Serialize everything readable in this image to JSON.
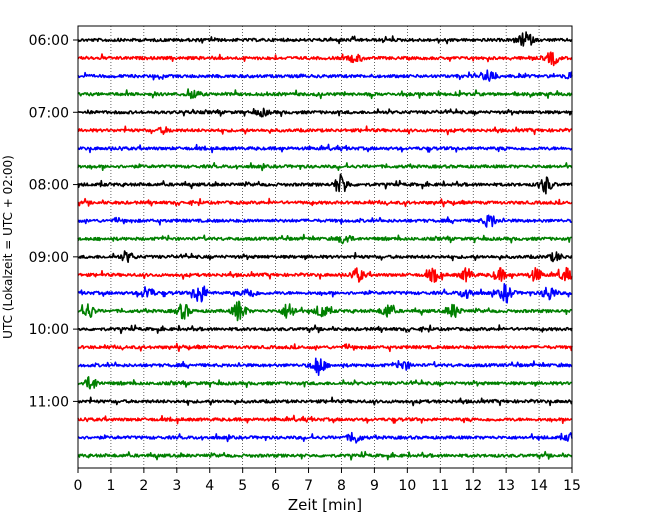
{
  "chart_data": {
    "type": "line",
    "title": "",
    "xlabel": "Zeit  [min]",
    "ylabel": "UTC (Lokalzeit = UTC + 02:00)",
    "xlim": [
      0,
      15
    ],
    "x_ticks": [
      0,
      1,
      2,
      3,
      4,
      5,
      6,
      7,
      8,
      9,
      10,
      11,
      12,
      13,
      14,
      15
    ],
    "y_tick_labels": [
      "06:00",
      "07:00",
      "08:00",
      "09:00",
      "10:00",
      "11:00"
    ],
    "grid": "vertical dotted lines at each minute",
    "trace_interval_minutes": 15,
    "trace_colors": [
      "#000000",
      "#ff0000",
      "#0000ff",
      "#008000"
    ],
    "rows": [
      {
        "start": "06:00",
        "color": "black",
        "bursts": [
          {
            "t": 13.6,
            "a": 1.0
          }
        ]
      },
      {
        "start": "06:15",
        "color": "red",
        "bursts": [
          {
            "t": 8.4,
            "a": 0.45
          },
          {
            "t": 14.4,
            "a": 0.8
          }
        ]
      },
      {
        "start": "06:30",
        "color": "blue",
        "bursts": [
          {
            "t": 12.5,
            "a": 0.8
          },
          {
            "t": 15.0,
            "a": 0.5
          }
        ]
      },
      {
        "start": "06:45",
        "color": "green",
        "bursts": [
          {
            "t": 3.5,
            "a": 0.5
          }
        ]
      },
      {
        "start": "07:00",
        "color": "black",
        "bursts": [
          {
            "t": 5.6,
            "a": 0.4
          }
        ]
      },
      {
        "start": "07:15",
        "color": "red",
        "bursts": [
          {
            "t": 2.6,
            "a": 0.3
          }
        ]
      },
      {
        "start": "07:30",
        "color": "blue",
        "bursts": []
      },
      {
        "start": "07:45",
        "color": "green",
        "bursts": []
      },
      {
        "start": "08:00",
        "color": "black",
        "bursts": [
          {
            "t": 8.0,
            "a": 1.2
          },
          {
            "t": 14.2,
            "a": 1.0
          }
        ]
      },
      {
        "start": "08:15",
        "color": "red",
        "bursts": []
      },
      {
        "start": "08:30",
        "color": "blue",
        "bursts": [
          {
            "t": 12.5,
            "a": 0.8
          }
        ]
      },
      {
        "start": "08:45",
        "color": "green",
        "bursts": [
          {
            "t": 8.1,
            "a": 0.6
          }
        ]
      },
      {
        "start": "09:00",
        "color": "black",
        "bursts": [
          {
            "t": 1.5,
            "a": 0.55
          },
          {
            "t": 14.5,
            "a": 0.5
          }
        ]
      },
      {
        "start": "09:15",
        "color": "red",
        "bursts": [
          {
            "t": 8.5,
            "a": 0.75
          },
          {
            "t": 10.8,
            "a": 0.75
          },
          {
            "t": 11.8,
            "a": 0.75
          },
          {
            "t": 12.8,
            "a": 0.75
          },
          {
            "t": 13.9,
            "a": 0.75
          },
          {
            "t": 14.8,
            "a": 0.75
          }
        ]
      },
      {
        "start": "09:30",
        "color": "blue",
        "bursts": [
          {
            "t": 2.1,
            "a": 0.8
          },
          {
            "t": 3.7,
            "a": 1.3
          },
          {
            "t": 5.2,
            "a": 0.6
          },
          {
            "t": 11.8,
            "a": 0.7
          },
          {
            "t": 13.0,
            "a": 1.1
          },
          {
            "t": 14.3,
            "a": 0.9
          }
        ]
      },
      {
        "start": "09:45",
        "color": "green",
        "bursts": [
          {
            "t": 0.3,
            "a": 0.9
          },
          {
            "t": 3.2,
            "a": 0.9
          },
          {
            "t": 4.9,
            "a": 1.3
          },
          {
            "t": 6.4,
            "a": 1.0
          },
          {
            "t": 7.4,
            "a": 0.8
          },
          {
            "t": 9.4,
            "a": 0.8
          },
          {
            "t": 11.4,
            "a": 0.8
          }
        ]
      },
      {
        "start": "10:00",
        "color": "black",
        "bursts": []
      },
      {
        "start": "10:15",
        "color": "red",
        "bursts": []
      },
      {
        "start": "10:30",
        "color": "blue",
        "bursts": [
          {
            "t": 7.3,
            "a": 1.2
          },
          {
            "t": 9.9,
            "a": 0.5
          }
        ]
      },
      {
        "start": "10:45",
        "color": "green",
        "bursts": [
          {
            "t": 0.4,
            "a": 0.8
          }
        ]
      },
      {
        "start": "11:00",
        "color": "black",
        "bursts": []
      },
      {
        "start": "11:15",
        "color": "red",
        "bursts": []
      },
      {
        "start": "11:30",
        "color": "blue",
        "bursts": [
          {
            "t": 8.4,
            "a": 0.65
          },
          {
            "t": 15.0,
            "a": 0.6
          }
        ]
      },
      {
        "start": "11:45",
        "color": "green",
        "bursts": []
      }
    ]
  }
}
